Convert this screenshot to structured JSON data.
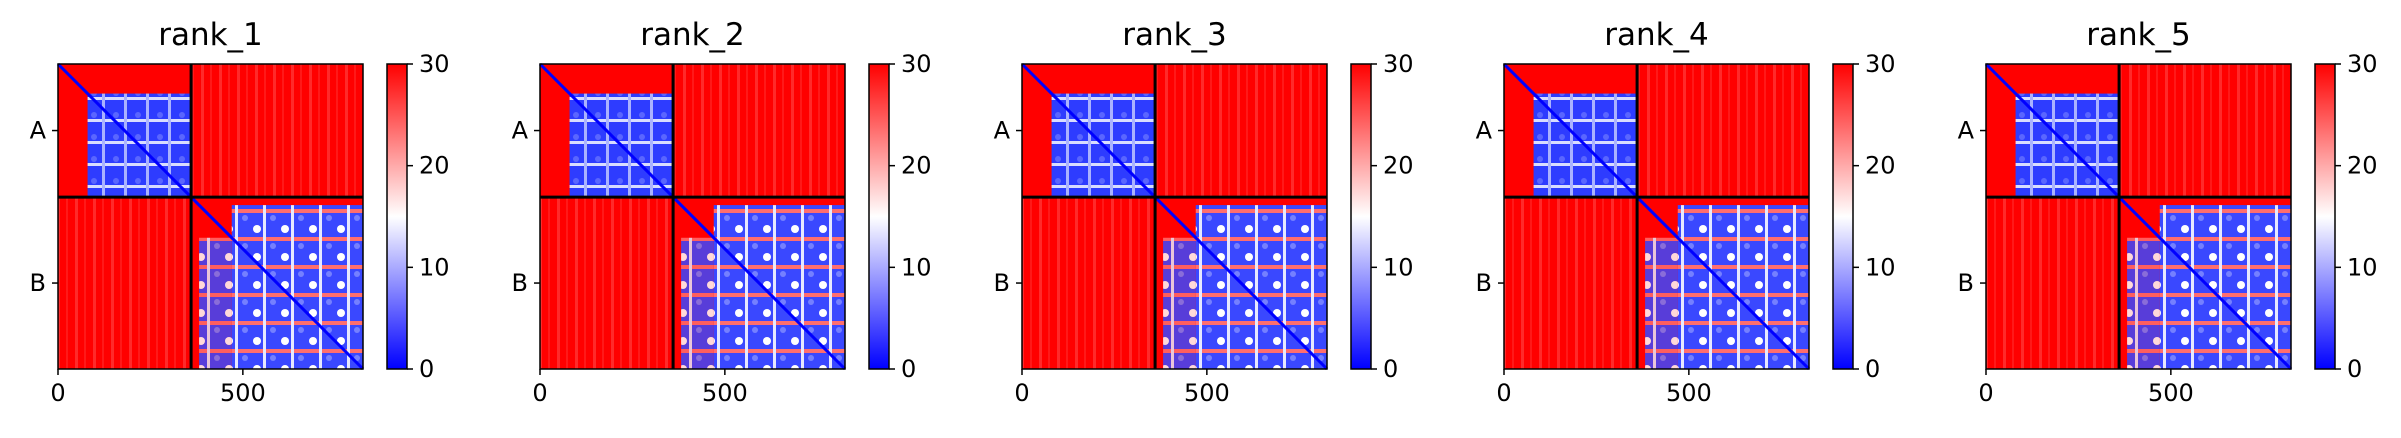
{
  "chart_data": [
    {
      "type": "heatmap",
      "title": "rank_1",
      "chains": [
        "A",
        "B"
      ],
      "chain_boundary": 360,
      "x_range": [
        0,
        825
      ],
      "xticks": [
        "0",
        "500"
      ],
      "colorbar": {
        "range": [
          0,
          30
        ],
        "ticks": [
          "0",
          "10",
          "20",
          "30"
        ],
        "colors": [
          "#0000ff",
          "#ffffff",
          "#ff0000"
        ]
      }
    },
    {
      "type": "heatmap",
      "title": "rank_2",
      "chains": [
        "A",
        "B"
      ],
      "chain_boundary": 360,
      "x_range": [
        0,
        825
      ],
      "xticks": [
        "0",
        "500"
      ],
      "colorbar": {
        "range": [
          0,
          30
        ],
        "ticks": [
          "0",
          "10",
          "20",
          "30"
        ],
        "colors": [
          "#0000ff",
          "#ffffff",
          "#ff0000"
        ]
      }
    },
    {
      "type": "heatmap",
      "title": "rank_3",
      "chains": [
        "A",
        "B"
      ],
      "chain_boundary": 360,
      "x_range": [
        0,
        825
      ],
      "xticks": [
        "0",
        "500"
      ],
      "colorbar": {
        "range": [
          0,
          30
        ],
        "ticks": [
          "0",
          "10",
          "20",
          "30"
        ],
        "colors": [
          "#0000ff",
          "#ffffff",
          "#ff0000"
        ]
      }
    },
    {
      "type": "heatmap",
      "title": "rank_4",
      "chains": [
        "A",
        "B"
      ],
      "chain_boundary": 360,
      "x_range": [
        0,
        825
      ],
      "xticks": [
        "0",
        "500"
      ],
      "colorbar": {
        "range": [
          0,
          30
        ],
        "ticks": [
          "0",
          "10",
          "20",
          "30"
        ],
        "colors": [
          "#0000ff",
          "#ffffff",
          "#ff0000"
        ]
      }
    },
    {
      "type": "heatmap",
      "title": "rank_5",
      "chains": [
        "A",
        "B"
      ],
      "chain_boundary": 360,
      "x_range": [
        0,
        825
      ],
      "xticks": [
        "0",
        "500"
      ],
      "colorbar": {
        "range": [
          0,
          30
        ],
        "ticks": [
          "0",
          "10",
          "20",
          "30"
        ],
        "colors": [
          "#0000ff",
          "#ffffff",
          "#ff0000"
        ]
      }
    }
  ]
}
